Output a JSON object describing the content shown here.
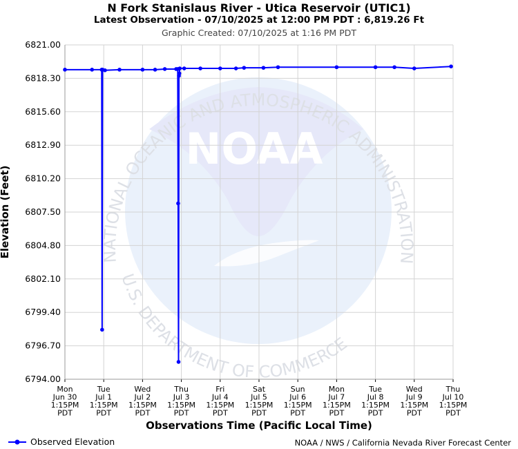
{
  "header": {
    "title": "N Fork Stanislaus River - Utica Reservoir (UTIC1)",
    "subtitle": "Latest Observation - 07/10/2025 at 12:00 PM PDT : 6,819.26 Ft",
    "created": "Graphic Created: 07/10/2025 at 1:16 PM PDT"
  },
  "legend": {
    "label": "Observed Elevation"
  },
  "credit": "NOAA / NWS / California Nevada River Forecast Center",
  "watermark": {
    "logo_text": "NOAA",
    "top_arc": "NATIONAL OCEANIC AND ATMOSPHERIC ADMINISTRATION",
    "bottom_arc": "U.S. DEPARTMENT OF COMMERCE"
  },
  "colors": {
    "series": "#0000ff",
    "grid": "#d3d3d3",
    "watermark": "#e9ecfb"
  },
  "chart_data": {
    "type": "line",
    "xlabel": "Observations Time (Pacific Local Time)",
    "ylabel": "Elevation (Feet)",
    "ylim": [
      6794.0,
      6821.0
    ],
    "yticks": [
      "6821.00",
      "6818.30",
      "6815.60",
      "6812.90",
      "6810.20",
      "6807.50",
      "6804.80",
      "6802.10",
      "6799.40",
      "6796.70",
      "6794.00"
    ],
    "xlim": [
      "Mon Jun 30 1:15PM PDT",
      "Thu Jul 10 1:15PM PDT"
    ],
    "xticks": [
      [
        "Mon",
        "Jun 30",
        "1:15PM",
        "PDT"
      ],
      [
        "Tue",
        "Jul 1",
        "1:15PM",
        "PDT"
      ],
      [
        "Wed",
        "Jul 2",
        "1:15PM",
        "PDT"
      ],
      [
        "Thu",
        "Jul 3",
        "1:15PM",
        "PDT"
      ],
      [
        "Fri",
        "Jul 4",
        "1:15PM",
        "PDT"
      ],
      [
        "Sat",
        "Jul 5",
        "1:15PM",
        "PDT"
      ],
      [
        "Sun",
        "Jul 6",
        "1:15PM",
        "PDT"
      ],
      [
        "Mon",
        "Jul 7",
        "1:15PM",
        "PDT"
      ],
      [
        "Tue",
        "Jul 8",
        "1:15PM",
        "PDT"
      ],
      [
        "Wed",
        "Jul 9",
        "1:15PM",
        "PDT"
      ],
      [
        "Thu",
        "Jul 10",
        "1:15PM",
        "PDT"
      ]
    ],
    "grid": true,
    "legend_position": "bottom-left",
    "series": [
      {
        "name": "Observed Elevation",
        "x": [
          "Mon Jun 30 1:15PM",
          "Tue Jul 1 6:00AM",
          "Tue Jul 1 12:00PM",
          "Tue Jul 1 12:15PM",
          "Tue Jul 1 12:30PM",
          "Tue Jul 1 2:00PM",
          "Tue Jul 1 11:00PM",
          "Wed Jul 2 1:15PM",
          "Wed Jul 2 9:00PM",
          "Thu Jul 3 3:00AM",
          "Thu Jul 3 10:00AM",
          "Thu Jul 3 11:00AM",
          "Thu Jul 3 11:15AM",
          "Thu Jul 3 11:30AM",
          "Thu Jul 3 11:45AM",
          "Thu Jul 3 12:00PM",
          "Thu Jul 3 12:15PM",
          "Thu Jul 3 3:00PM",
          "Fri Jul 4 1:00AM",
          "Fri Jul 4 1:15PM",
          "Fri Jul 4 11:00PM",
          "Sat Jul 5 4:00AM",
          "Sat Jul 5 4:00PM",
          "Sun Jul 6 1:00AM",
          "Mon Jul 7 1:15PM",
          "Tue Jul 8 1:15PM",
          "Wed Jul 9 1:00AM",
          "Wed Jul 9 1:15PM",
          "Thu Jul 10 12:00PM"
        ],
        "values": [
          6819.0,
          6819.0,
          6819.0,
          6798.0,
          6819.0,
          6818.95,
          6819.0,
          6819.0,
          6819.0,
          6819.05,
          6819.05,
          6819.05,
          6808.2,
          6795.4,
          6818.5,
          6818.7,
          6819.1,
          6819.1,
          6819.1,
          6819.1,
          6819.1,
          6819.15,
          6819.15,
          6819.2,
          6819.2,
          6819.2,
          6819.2,
          6819.1,
          6819.26
        ]
      }
    ]
  }
}
